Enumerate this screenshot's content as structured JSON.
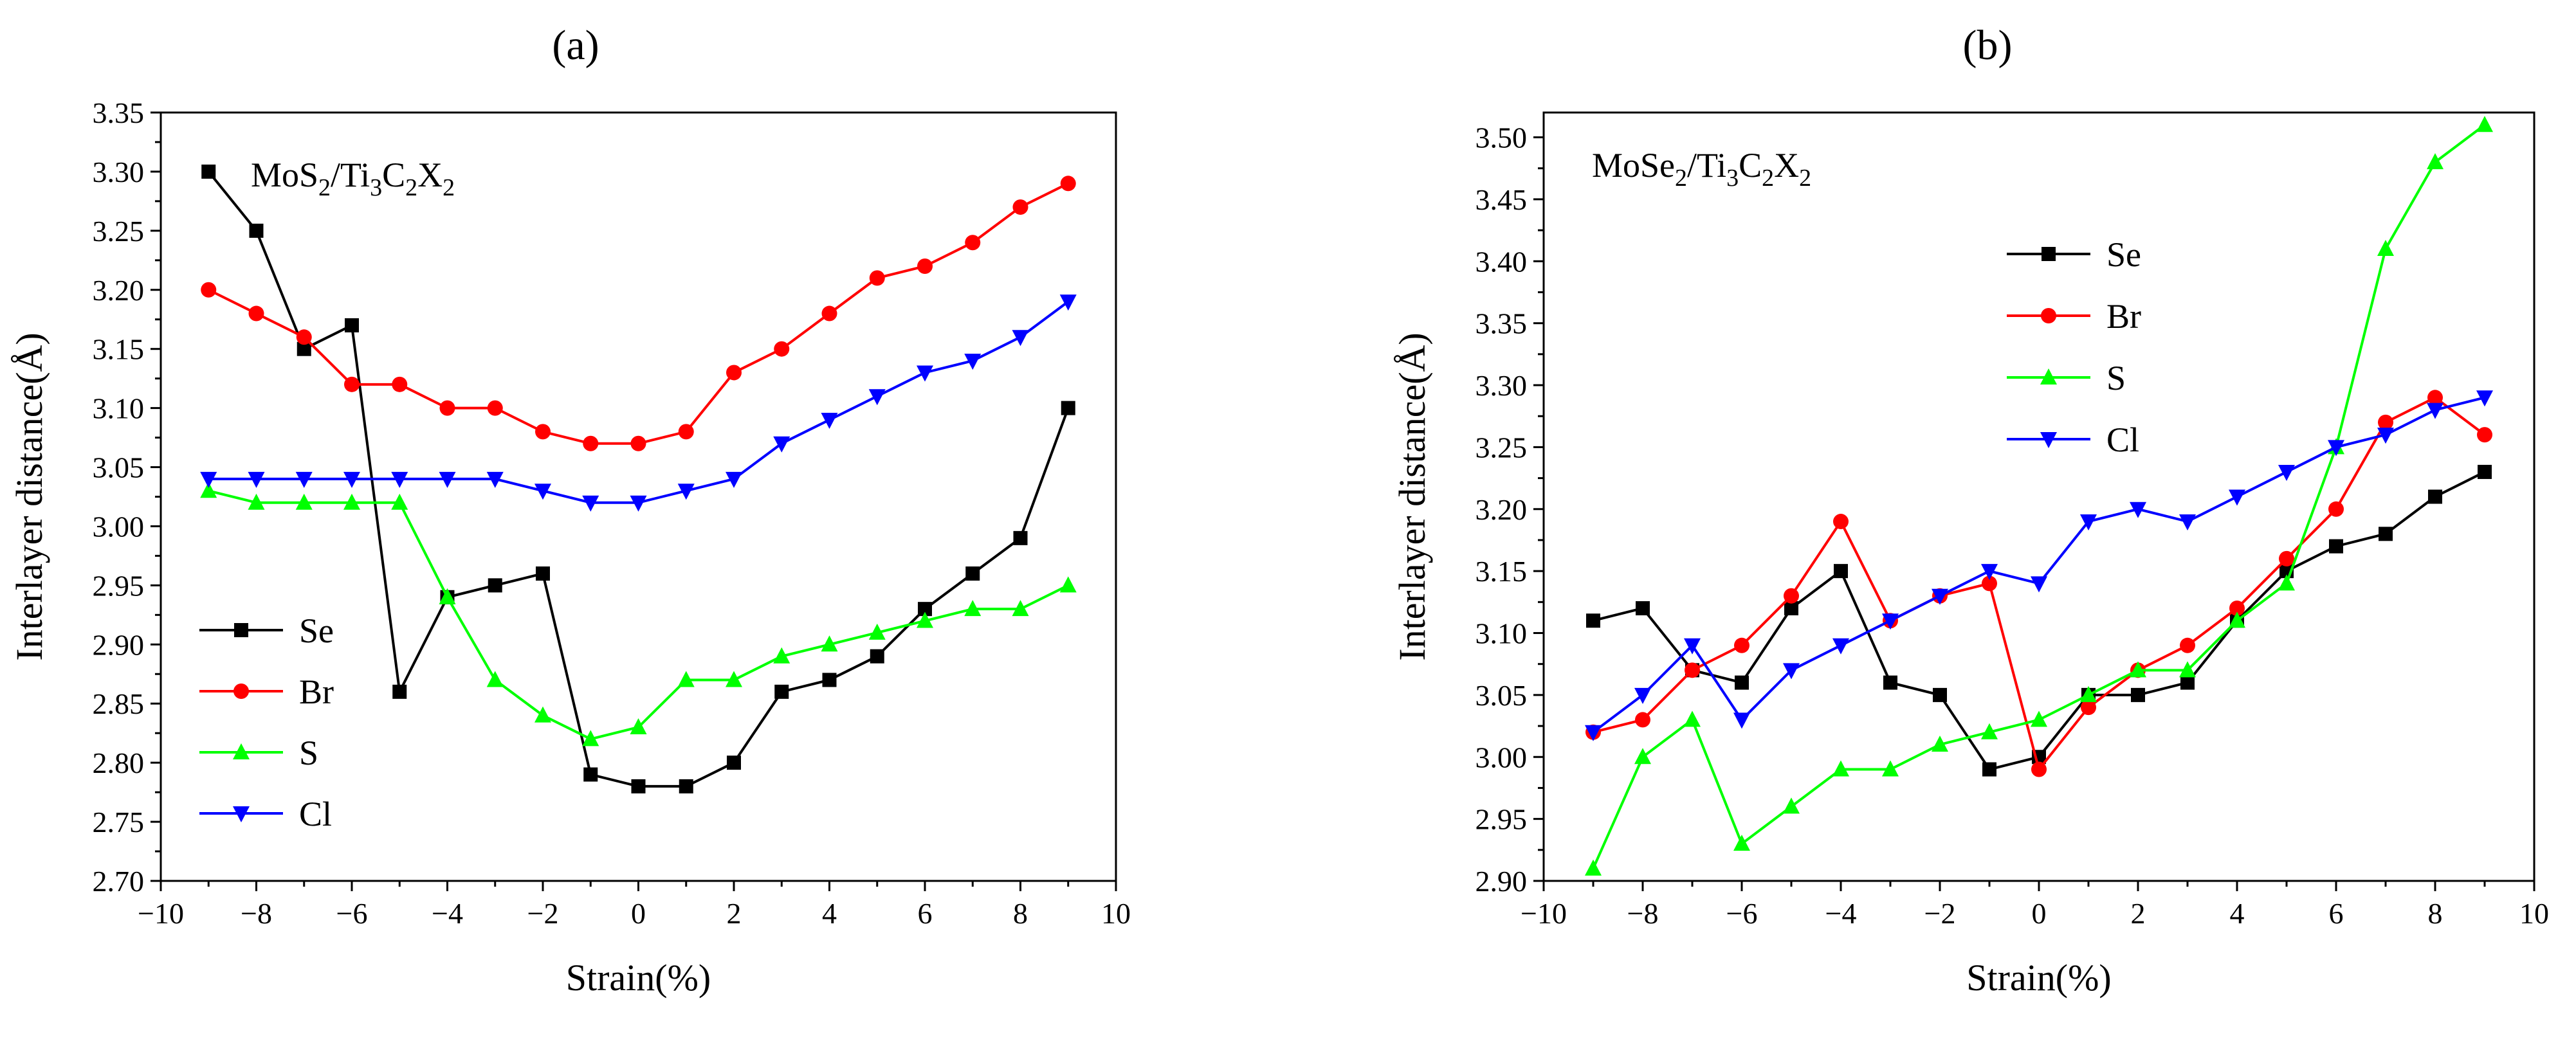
{
  "chart_data": [
    {
      "type": "line",
      "panel_label": "(a)",
      "composition": {
        "parts": [
          {
            "t": "MoS",
            "sub": false
          },
          {
            "t": "2",
            "sub": true
          },
          {
            "t": "/Ti",
            "sub": false
          },
          {
            "t": "3",
            "sub": true
          },
          {
            "t": "C",
            "sub": false
          },
          {
            "t": "2",
            "sub": true
          },
          {
            "t": "X",
            "sub": false
          },
          {
            "t": "2",
            "sub": true
          }
        ]
      },
      "xlabel": "Strain(%)",
      "ylabel": "Interlayer distance(Å)",
      "xlim": [
        -10,
        10
      ],
      "ylim": [
        2.7,
        3.35
      ],
      "xticks": [
        -10,
        -8,
        -6,
        -4,
        -2,
        0,
        2,
        4,
        6,
        8,
        10
      ],
      "xtick_labels": [
        "−10",
        "−8",
        "−6",
        "−4",
        "−2",
        "0",
        "2",
        "4",
        "6",
        "8",
        "10"
      ],
      "yticks": [
        2.7,
        2.75,
        2.8,
        2.85,
        2.9,
        2.95,
        3.0,
        3.05,
        3.1,
        3.15,
        3.2,
        3.25,
        3.3,
        3.35
      ],
      "ytick_labels": [
        "2.70",
        "2.75",
        "2.80",
        "2.85",
        "2.90",
        "2.95",
        "3.00",
        "3.05",
        "3.10",
        "3.15",
        "3.20",
        "3.25",
        "3.30",
        "3.35"
      ],
      "x": [
        -9,
        -8,
        -7,
        -6,
        -5,
        -4,
        -3,
        -2,
        -1,
        0,
        1,
        2,
        3,
        4,
        5,
        6,
        7,
        8,
        9
      ],
      "legend_position": "lower-left",
      "series": [
        {
          "name": "Se",
          "color": "#000000",
          "marker": "square",
          "values": [
            3.3,
            3.25,
            3.15,
            3.17,
            2.86,
            2.94,
            2.95,
            2.96,
            2.79,
            2.78,
            2.78,
            2.8,
            2.86,
            2.87,
            2.89,
            2.93,
            2.96,
            2.99,
            3.1
          ]
        },
        {
          "name": "Br",
          "color": "#ff0000",
          "marker": "circle",
          "values": [
            3.2,
            3.18,
            3.16,
            3.12,
            3.12,
            3.1,
            3.1,
            3.08,
            3.07,
            3.07,
            3.08,
            3.13,
            3.15,
            3.18,
            3.21,
            3.22,
            3.24,
            3.27,
            3.29
          ]
        },
        {
          "name": "S",
          "color": "#00ff00",
          "marker": "triangle-up",
          "values": [
            3.03,
            3.02,
            3.02,
            3.02,
            3.02,
            2.94,
            2.87,
            2.84,
            2.82,
            2.83,
            2.87,
            2.87,
            2.89,
            2.9,
            2.91,
            2.92,
            2.93,
            2.93,
            2.95
          ]
        },
        {
          "name": "Cl",
          "color": "#0000ff",
          "marker": "triangle-down",
          "values": [
            3.04,
            3.04,
            3.04,
            3.04,
            3.04,
            3.04,
            3.04,
            3.03,
            3.02,
            3.02,
            3.03,
            3.04,
            3.07,
            3.09,
            3.11,
            3.13,
            3.14,
            3.16,
            3.19
          ]
        }
      ]
    },
    {
      "type": "line",
      "panel_label": "(b)",
      "composition": {
        "parts": [
          {
            "t": "MoSe",
            "sub": false
          },
          {
            "t": "2",
            "sub": true
          },
          {
            "t": "/Ti",
            "sub": false
          },
          {
            "t": "3",
            "sub": true
          },
          {
            "t": "C",
            "sub": false
          },
          {
            "t": "2",
            "sub": true
          },
          {
            "t": "X",
            "sub": false
          },
          {
            "t": "2",
            "sub": true
          }
        ]
      },
      "xlabel": "Strain(%)",
      "ylabel": "Interlayer distance(Å)",
      "xlim": [
        -10,
        10
      ],
      "ylim": [
        2.9,
        3.52
      ],
      "xticks": [
        -10,
        -8,
        -6,
        -4,
        -2,
        0,
        2,
        4,
        6,
        8,
        10
      ],
      "xtick_labels": [
        "−10",
        "−8",
        "−6",
        "−4",
        "−2",
        "0",
        "2",
        "4",
        "6",
        "8",
        "10"
      ],
      "yticks": [
        2.9,
        2.95,
        3.0,
        3.05,
        3.1,
        3.15,
        3.2,
        3.25,
        3.3,
        3.35,
        3.4,
        3.45,
        3.5
      ],
      "ytick_labels": [
        "2.90",
        "2.95",
        "3.00",
        "3.05",
        "3.10",
        "3.15",
        "3.20",
        "3.25",
        "3.30",
        "3.35",
        "3.40",
        "3.45",
        "3.50"
      ],
      "x": [
        -9,
        -8,
        -7,
        -6,
        -5,
        -4,
        -3,
        -2,
        -1,
        0,
        1,
        2,
        3,
        4,
        5,
        6,
        7,
        8,
        9
      ],
      "legend_position": "upper-center",
      "series": [
        {
          "name": "Se",
          "color": "#000000",
          "marker": "square",
          "values": [
            3.11,
            3.12,
            3.07,
            3.06,
            3.12,
            3.15,
            3.06,
            3.05,
            2.99,
            3.0,
            3.05,
            3.05,
            3.06,
            3.11,
            3.15,
            3.17,
            3.18,
            3.21,
            3.23
          ]
        },
        {
          "name": "Br",
          "color": "#ff0000",
          "marker": "circle",
          "values": [
            3.02,
            3.03,
            3.07,
            3.09,
            3.13,
            3.19,
            3.11,
            3.13,
            3.14,
            2.99,
            3.04,
            3.07,
            3.09,
            3.12,
            3.16,
            3.2,
            3.27,
            3.29,
            3.26
          ]
        },
        {
          "name": "S",
          "color": "#00ff00",
          "marker": "triangle-up",
          "values": [
            2.91,
            3.0,
            3.03,
            2.93,
            2.96,
            2.99,
            2.99,
            3.01,
            3.02,
            3.03,
            3.05,
            3.07,
            3.07,
            3.11,
            3.14,
            3.25,
            3.41,
            3.48,
            3.51
          ]
        },
        {
          "name": "Cl",
          "color": "#0000ff",
          "marker": "triangle-down",
          "values": [
            3.02,
            3.05,
            3.09,
            3.03,
            3.07,
            3.09,
            3.11,
            3.13,
            3.15,
            3.14,
            3.19,
            3.2,
            3.19,
            3.21,
            3.23,
            3.25,
            3.26,
            3.28,
            3.29
          ]
        }
      ]
    }
  ]
}
